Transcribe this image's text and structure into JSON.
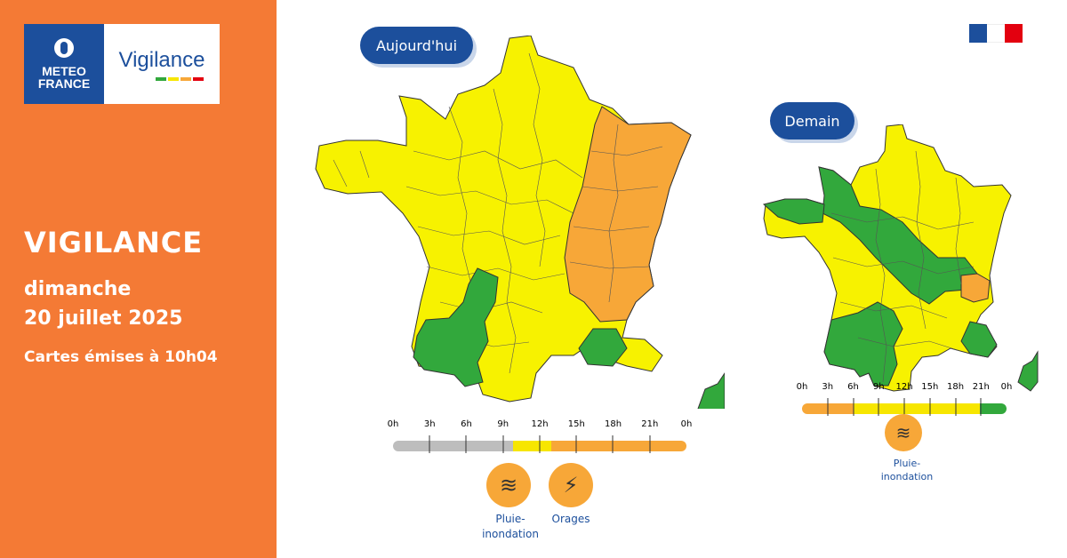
{
  "brand": {
    "logo_line1": "METEO",
    "logo_line2": "FRANCE",
    "product": "Vigilance",
    "colors": {
      "orange_panel": "#f47a35",
      "navy": "#1c4f9c",
      "yellow": "#f7e600",
      "orange": "#f7a738",
      "green": "#32a83c",
      "grey": "#bdbdbd"
    }
  },
  "heading": {
    "title": "VIGILANCE",
    "day": "dimanche",
    "date": "20 juillet 2025",
    "issued": "Cartes émises à 10h04"
  },
  "today": {
    "label": "Aujourd'hui",
    "timeline_ticks": [
      "0h",
      "3h",
      "6h",
      "9h",
      "12h",
      "15h",
      "18h",
      "21h",
      "0h"
    ],
    "hazards": [
      {
        "icon": "rain-flood-icon",
        "label_line1": "Pluie-",
        "label_line2": "inondation"
      },
      {
        "icon": "storm-icon",
        "label_line1": "Orages",
        "label_line2": ""
      }
    ]
  },
  "tomorrow": {
    "label": "Demain",
    "timeline_ticks": [
      "0h",
      "3h",
      "6h",
      "9h",
      "12h",
      "15h",
      "18h",
      "21h",
      "0h"
    ],
    "hazards": [
      {
        "icon": "rain-flood-icon",
        "label_line1": "Pluie-",
        "label_line2": "inondation"
      }
    ]
  },
  "flag": {
    "icon": "french-republic-flag-icon"
  }
}
